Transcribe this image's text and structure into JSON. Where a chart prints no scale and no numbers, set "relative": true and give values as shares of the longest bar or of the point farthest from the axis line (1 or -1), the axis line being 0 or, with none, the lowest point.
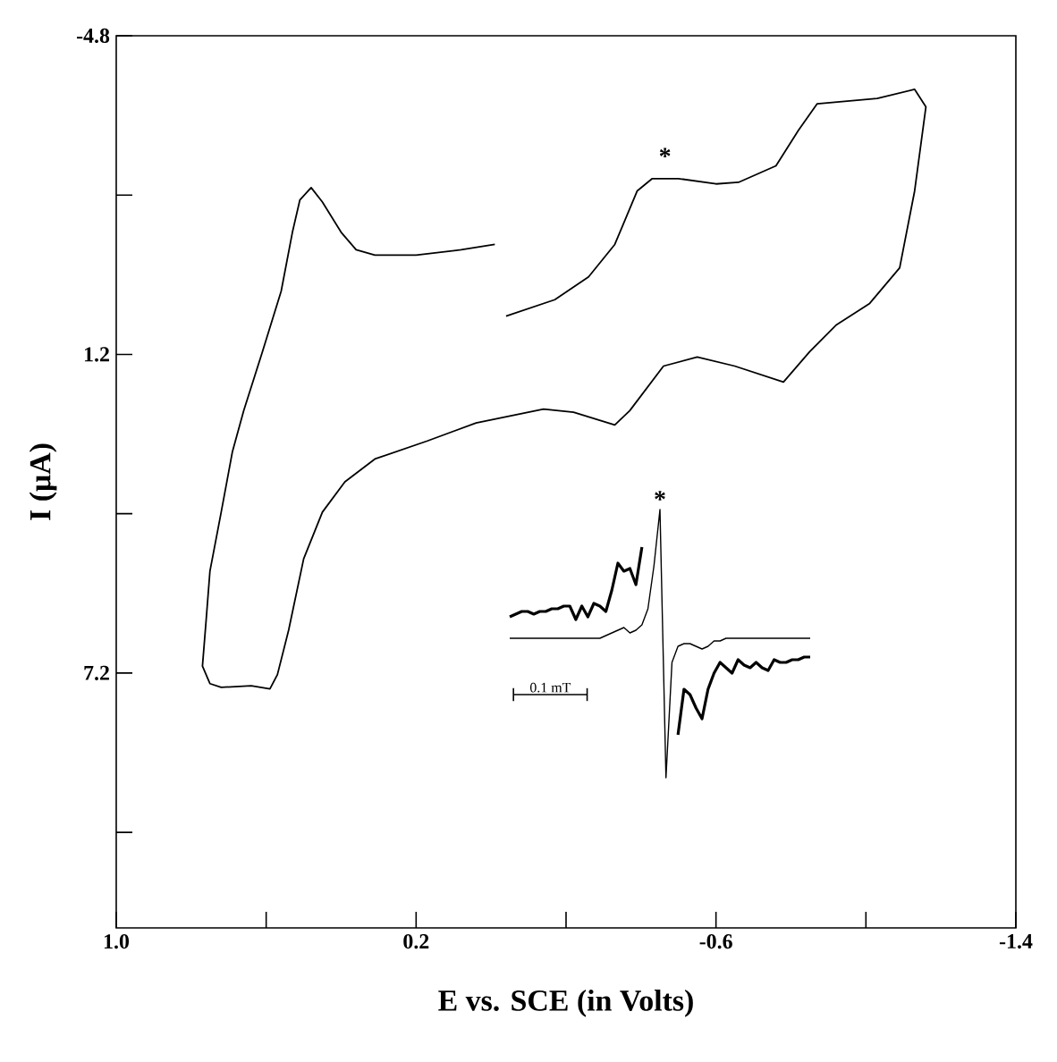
{
  "chart_data": [
    {
      "type": "line",
      "xlabel": "E vs. SCE (in Volts)",
      "ylabel": "I (μA)",
      "xlim": [
        1.0,
        -1.4
      ],
      "xticks": [
        {
          "value": 1.0,
          "label": "1.0"
        },
        {
          "value": 0.6,
          "label": null
        },
        0.2,
        {
          "value": -0.2,
          "label": null
        },
        -0.6,
        {
          "value": -1.0,
          "label": null
        },
        -1.4
      ],
      "ylim": [
        12.0,
        -4.8
      ],
      "yticks": [
        -4.8,
        {
          "value": -1.8,
          "label": null
        },
        1.2,
        {
          "value": 4.2,
          "label": null
        },
        7.2,
        {
          "value": 10.2,
          "label": null
        }
      ],
      "series": [
        {
          "color": "#000000",
          "x": [
            -0.01,
            0.08,
            0.2,
            0.31,
            0.36,
            0.4,
            0.45,
            0.48,
            0.51,
            0.53,
            0.56,
            0.61,
            0.66,
            0.69,
            0.72,
            0.75,
            0.76,
            0.77,
            0.75,
            0.72,
            0.64,
            0.59,
            0.57,
            0.54,
            0.5,
            0.45,
            0.39,
            0.31,
            0.17,
            0.04,
            -0.14,
            -0.22,
            -0.33,
            -0.37,
            -0.46,
            -0.55,
            -0.65,
            -0.78,
            -0.85,
            -0.92,
            -1.01,
            -1.09,
            -1.13,
            -1.16,
            -1.13,
            -1.03,
            -0.87,
            -0.82,
            -0.76,
            -0.66,
            -0.6,
            -0.5,
            -0.43,
            -0.39,
            -0.33,
            -0.26,
            -0.17,
            -0.04
          ],
          "values": [
            -0.87,
            -0.77,
            -0.67,
            -0.67,
            -0.77,
            -1.1,
            -1.67,
            -1.94,
            -1.71,
            -1.1,
            0.01,
            1.15,
            2.26,
            3.03,
            4.17,
            5.28,
            6.19,
            7.07,
            7.4,
            7.47,
            7.44,
            7.5,
            7.23,
            6.39,
            5.05,
            4.17,
            3.6,
            3.17,
            2.83,
            2.49,
            2.23,
            2.29,
            2.53,
            2.26,
            1.42,
            1.25,
            1.42,
            1.72,
            1.15,
            0.65,
            0.24,
            -0.43,
            -1.88,
            -3.46,
            -3.79,
            -3.62,
            -3.52,
            -3.02,
            -2.35,
            -2.04,
            -2.01,
            -2.11,
            -2.11,
            -1.88,
            -0.87,
            -0.26,
            0.17,
            0.48
          ]
        }
      ],
      "annotations": [
        "*"
      ]
    },
    {
      "type": "line",
      "relative": true,
      "categories": [
        null,
        null,
        null,
        null,
        null,
        null,
        null,
        null,
        null,
        null,
        null,
        null,
        null,
        null,
        null,
        null,
        null,
        null,
        null,
        null,
        null,
        null,
        null,
        null,
        null,
        null,
        null,
        null,
        null,
        null,
        null,
        null,
        null,
        null,
        null,
        null,
        null,
        null,
        null,
        null,
        null,
        null,
        null,
        null,
        null,
        null,
        null,
        null,
        null,
        null,
        null
      ],
      "series": [
        {
          "color": "#000000",
          "values": [
            0.6,
            0.61,
            0.62,
            0.62,
            0.61,
            0.62,
            0.62,
            0.63,
            0.63,
            0.64,
            0.64,
            0.59,
            0.64,
            0.6,
            0.65,
            0.64,
            0.62,
            0.7,
            0.8,
            0.77,
            0.78,
            0.72,
            0.86,
            null,
            null,
            null,
            null,
            null,
            0.16,
            0.33,
            0.31,
            0.26,
            0.22,
            0.33,
            0.39,
            0.43,
            0.41,
            0.39,
            0.44,
            0.42,
            0.41,
            0.43,
            0.41,
            0.4,
            0.44,
            0.43,
            0.43,
            0.44,
            0.44,
            0.45,
            0.45
          ]
        },
        {
          "color": "#000000",
          "values": [
            0.52,
            0.52,
            0.52,
            0.52,
            0.52,
            0.52,
            0.52,
            0.52,
            0.52,
            0.52,
            0.52,
            0.52,
            0.52,
            0.52,
            0.52,
            0.52,
            0.53,
            0.54,
            0.55,
            0.56,
            0.54,
            0.55,
            0.57,
            0.63,
            0.79,
            1.0,
            0.0,
            0.43,
            0.49,
            0.5,
            0.5,
            0.49,
            0.48,
            0.49,
            0.51,
            0.51,
            0.52,
            0.52,
            0.52,
            0.52,
            0.52,
            0.52,
            0.52,
            0.52,
            0.52,
            0.52,
            0.52,
            0.52,
            0.52,
            0.52,
            0.52
          ]
        }
      ],
      "annotations": [
        "*",
        "0.1 mT"
      ]
    }
  ]
}
